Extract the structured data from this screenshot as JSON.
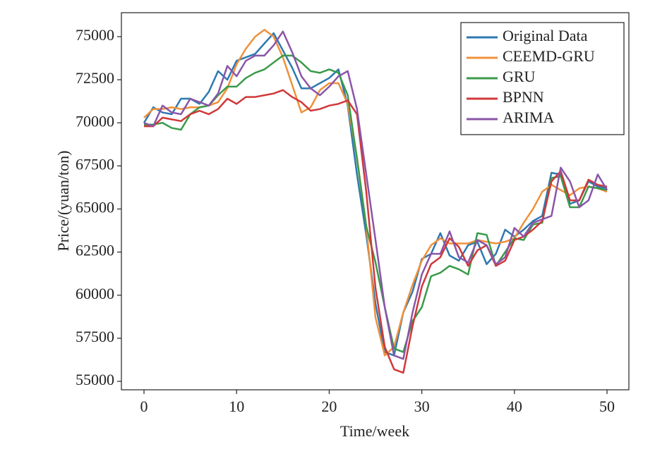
{
  "chart_data": {
    "type": "line",
    "x_label": "Time/week",
    "y_label": "Price/(yuan/ton)",
    "x": [
      0,
      1,
      2,
      3,
      4,
      5,
      6,
      7,
      8,
      9,
      10,
      11,
      12,
      13,
      14,
      15,
      16,
      17,
      18,
      19,
      20,
      21,
      22,
      23,
      24,
      25,
      26,
      27,
      28,
      29,
      30,
      31,
      32,
      33,
      34,
      35,
      36,
      37,
      38,
      39,
      40,
      41,
      42,
      43,
      44,
      45,
      46,
      47,
      48,
      49,
      50
    ],
    "series": [
      {
        "name": "Original Data",
        "color": "#2e78b0",
        "values": [
          70000,
          70900,
          70600,
          70500,
          71400,
          71400,
          71100,
          71800,
          73000,
          72500,
          73600,
          73800,
          74000,
          74600,
          75200,
          74200,
          73200,
          72000,
          72000,
          72300,
          72600,
          73100,
          71000,
          67000,
          63500,
          59500,
          56700,
          56500,
          59000,
          60200,
          62100,
          62400,
          63600,
          62300,
          62000,
          62900,
          63100,
          61800,
          62400,
          63800,
          63400,
          63800,
          64300,
          64600,
          67100,
          67000,
          65300,
          65500,
          66600,
          66300,
          66200
        ]
      },
      {
        "name": "CEEMD-GRU",
        "color": "#f0913a",
        "values": [
          70300,
          70800,
          70800,
          70900,
          70800,
          70900,
          70900,
          71000,
          71200,
          72000,
          73400,
          74300,
          75000,
          75400,
          75000,
          73800,
          72200,
          70600,
          70900,
          71900,
          72300,
          72300,
          71100,
          68000,
          64000,
          58700,
          56500,
          57000,
          59000,
          60600,
          62000,
          62900,
          63300,
          63000,
          63000,
          63000,
          63200,
          63100,
          63000,
          63100,
          63300,
          64200,
          65000,
          66000,
          66400,
          66100,
          65800,
          66200,
          66300,
          66200,
          66000
        ]
      },
      {
        "name": "GRU",
        "color": "#3a9a4a",
        "values": [
          69900,
          69900,
          70000,
          69700,
          69600,
          70500,
          70900,
          71000,
          71600,
          72100,
          72100,
          72600,
          72900,
          73100,
          73500,
          73900,
          73900,
          73500,
          73000,
          72900,
          73100,
          72900,
          71600,
          67900,
          64000,
          61900,
          59300,
          56900,
          56700,
          58500,
          59300,
          61100,
          61300,
          61700,
          61500,
          61200,
          63600,
          63500,
          61700,
          62500,
          63300,
          63200,
          64100,
          64200,
          66800,
          66900,
          65100,
          65100,
          66300,
          66200,
          66100
        ]
      },
      {
        "name": "BPNN",
        "color": "#d0383a",
        "values": [
          69800,
          69800,
          70300,
          70200,
          70100,
          70500,
          70700,
          70500,
          70800,
          71400,
          71100,
          71500,
          71500,
          71600,
          71700,
          71900,
          71500,
          71200,
          70700,
          70800,
          71000,
          71100,
          71300,
          70500,
          66000,
          60400,
          57000,
          55700,
          55500,
          58200,
          60500,
          61800,
          62200,
          63300,
          62800,
          61700,
          62600,
          62900,
          61700,
          62000,
          63200,
          63400,
          63800,
          64300,
          66600,
          67200,
          65500,
          65500,
          66700,
          66400,
          66300
        ]
      },
      {
        "name": "ARIMA",
        "color": "#8a55a8",
        "values": [
          70000,
          69800,
          71000,
          70600,
          70500,
          71400,
          71200,
          71000,
          71700,
          73300,
          72700,
          73600,
          73900,
          73900,
          74500,
          75300,
          74100,
          72700,
          72000,
          71600,
          72100,
          72700,
          73000,
          70800,
          67000,
          63200,
          59300,
          56500,
          56300,
          59000,
          61200,
          62400,
          62400,
          63700,
          62200,
          61900,
          63200,
          62900,
          61800,
          62200,
          63900,
          63400,
          64200,
          64400,
          64600,
          67400,
          66600,
          65100,
          65500,
          67000,
          66100
        ]
      }
    ],
    "xlim": [
      -2.44,
      52.36
    ],
    "xticks": [
      0,
      10,
      20,
      30,
      40,
      50
    ],
    "ylim": [
      54510,
      76390
    ],
    "yticks": [
      55000,
      57500,
      60000,
      62500,
      65000,
      67500,
      70000,
      72500,
      75000
    ],
    "legend": "upper right",
    "grid": false
  }
}
